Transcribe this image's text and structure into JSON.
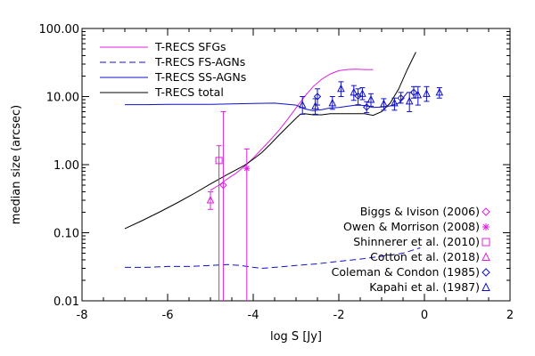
{
  "chart_data": {
    "type": "line",
    "xlabel": "log S [Jy]",
    "ylabel": "median size (arcsec)",
    "xlim": [
      -8,
      2
    ],
    "ylim_log": [
      0.01,
      100
    ],
    "x_ticks": [
      "-8",
      "-6",
      "-4",
      "-2",
      "0",
      "2"
    ],
    "y_ticks": [
      "0.01",
      "0.10",
      "1.00",
      "10.00",
      "100.00"
    ],
    "colors": {
      "sfg": "#e020e0",
      "agn": "#1010c8",
      "total": "#000000"
    },
    "legend": [
      {
        "label": "T-RECS SFGs",
        "color": "#e020e0",
        "dash": "solid"
      },
      {
        "label": "T-RECS FS-AGNs",
        "color": "#1010c8",
        "dash": "dashed"
      },
      {
        "label": "T-RECS SS-AGNs",
        "color": "#1010c8",
        "dash": "solid"
      },
      {
        "label": "T-RECS total",
        "color": "#000000",
        "dash": "solid"
      }
    ],
    "series": [
      {
        "name": "T-RECS SFGs",
        "color": "#e020e0",
        "dash": "solid",
        "x": [
          -5.0,
          -4.8,
          -4.6,
          -4.4,
          -4.2,
          -4.0,
          -3.8,
          -3.6,
          -3.4,
          -3.2,
          -3.0,
          -2.8,
          -2.6,
          -2.4,
          -2.2,
          -2.0,
          -1.8,
          -1.6,
          -1.4,
          -1.2
        ],
        "y": [
          0.42,
          0.5,
          0.62,
          0.75,
          0.95,
          1.25,
          1.7,
          2.3,
          3.2,
          4.6,
          6.8,
          10.0,
          14.0,
          18.0,
          21.5,
          24.0,
          25.0,
          25.2,
          25.0,
          24.8
        ]
      },
      {
        "name": "T-RECS FS-AGNs",
        "color": "#1010c8",
        "dash": "dashed",
        "x": [
          -7.0,
          -6.5,
          -6.0,
          -5.5,
          -5.0,
          -4.6,
          -4.3,
          -4.0,
          -3.8,
          -3.5,
          -3.0,
          -2.5,
          -2.0,
          -1.5,
          -1.0,
          -0.5,
          -0.1
        ],
        "y": [
          0.031,
          0.031,
          0.032,
          0.032,
          0.033,
          0.034,
          0.033,
          0.031,
          0.03,
          0.031,
          0.033,
          0.035,
          0.038,
          0.041,
          0.045,
          0.05,
          0.06
        ]
      },
      {
        "name": "T-RECS SS-AGNs",
        "color": "#1010c8",
        "dash": "solid",
        "x": [
          -7.0,
          -6.5,
          -6.0,
          -5.5,
          -5.0,
          -4.5,
          -4.0,
          -3.5,
          -3.0,
          -2.8,
          -2.6,
          -2.4,
          -2.2,
          -2.0,
          -1.8,
          -1.6,
          -1.4,
          -1.2,
          -1.0,
          -0.8,
          -0.6,
          -0.4
        ],
        "y": [
          7.6,
          7.6,
          7.7,
          7.7,
          7.7,
          7.8,
          7.9,
          8.0,
          7.5,
          6.6,
          6.2,
          6.4,
          6.8,
          6.9,
          7.2,
          7.5,
          7.4,
          6.9,
          7.0,
          7.3,
          8.0,
          11.5
        ]
      },
      {
        "name": "T-RECS total",
        "color": "#000000",
        "dash": "solid",
        "x": [
          -7.0,
          -6.6,
          -6.2,
          -5.8,
          -5.4,
          -5.0,
          -4.6,
          -4.2,
          -4.0,
          -3.8,
          -3.6,
          -3.4,
          -3.2,
          -3.0,
          -2.9,
          -2.8,
          -2.6,
          -2.4,
          -2.2,
          -2.0,
          -1.8,
          -1.6,
          -1.4,
          -1.2,
          -1.0,
          -0.8,
          -0.6,
          -0.4,
          -0.2
        ],
        "y": [
          0.115,
          0.15,
          0.2,
          0.27,
          0.37,
          0.52,
          0.72,
          0.98,
          1.2,
          1.5,
          2.0,
          2.7,
          3.6,
          4.8,
          5.5,
          5.6,
          5.4,
          5.4,
          5.6,
          5.6,
          5.6,
          5.6,
          5.6,
          5.3,
          6.0,
          8.0,
          13.0,
          25.0,
          45.0
        ]
      }
    ],
    "observations": [
      {
        "name": "Biggs & Ivison (2006)",
        "color": "#e020e0",
        "marker": "diamond",
        "points": [
          {
            "x": -4.7,
            "y": 0.5,
            "lo": 0.005,
            "hi": 6.0
          }
        ]
      },
      {
        "name": "Owen & Morrison (2008)",
        "color": "#e020e0",
        "marker": "asterisk",
        "points": [
          {
            "x": -4.15,
            "y": 0.88,
            "lo": 0.005,
            "hi": 1.7
          }
        ]
      },
      {
        "name": "Shinnerer et al. (2010)",
        "color": "#e020e0",
        "marker": "square",
        "points": [
          {
            "x": -4.8,
            "y": 1.15,
            "lo": 0.005,
            "hi": 1.9
          }
        ]
      },
      {
        "name": "Cotton et al. (2018)",
        "color": "#e020e0",
        "marker": "triangle",
        "points": [
          {
            "x": -5.0,
            "y": 0.3,
            "lo": 0.22,
            "hi": 0.4
          }
        ]
      },
      {
        "name": "Coleman & Condon (1985)",
        "color": "#1010c8",
        "marker": "diamond",
        "points": [
          {
            "x": -2.5,
            "y": 10.0,
            "lo": 7.5,
            "hi": 13.0
          },
          {
            "x": -1.55,
            "y": 10.2,
            "lo": 7.6,
            "hi": 13.0
          },
          {
            "x": -1.35,
            "y": 7.0,
            "lo": 5.8,
            "hi": 8.4
          },
          {
            "x": -0.55,
            "y": 9.5,
            "lo": 8.0,
            "hi": 11.5
          },
          {
            "x": -0.25,
            "y": 11.5,
            "lo": 9.5,
            "hi": 14.0
          }
        ]
      },
      {
        "name": "Kapahi et al. (1987)",
        "color": "#1010c8",
        "marker": "triangle",
        "points": [
          {
            "x": -2.85,
            "y": 7.5,
            "lo": 5.5,
            "hi": 10.0
          },
          {
            "x": -2.55,
            "y": 7.2,
            "lo": 5.5,
            "hi": 9.3
          },
          {
            "x": -2.15,
            "y": 8.0,
            "lo": 6.5,
            "hi": 10.0
          },
          {
            "x": -1.95,
            "y": 13.0,
            "lo": 10.0,
            "hi": 16.5
          },
          {
            "x": -1.65,
            "y": 11.5,
            "lo": 8.8,
            "hi": 14.5
          },
          {
            "x": -1.45,
            "y": 11.0,
            "lo": 9.0,
            "hi": 13.5
          },
          {
            "x": -1.25,
            "y": 9.0,
            "lo": 7.2,
            "hi": 11.0
          },
          {
            "x": -0.95,
            "y": 7.8,
            "lo": 6.3,
            "hi": 9.3
          },
          {
            "x": -0.7,
            "y": 8.0,
            "lo": 6.3,
            "hi": 9.5
          },
          {
            "x": -0.35,
            "y": 8.5,
            "lo": 6.0,
            "hi": 11.5
          },
          {
            "x": -0.15,
            "y": 10.5,
            "lo": 7.5,
            "hi": 14.0
          },
          {
            "x": 0.05,
            "y": 11.0,
            "lo": 8.5,
            "hi": 14.0
          },
          {
            "x": 0.35,
            "y": 11.5,
            "lo": 9.5,
            "hi": 13.5
          }
        ]
      }
    ]
  }
}
